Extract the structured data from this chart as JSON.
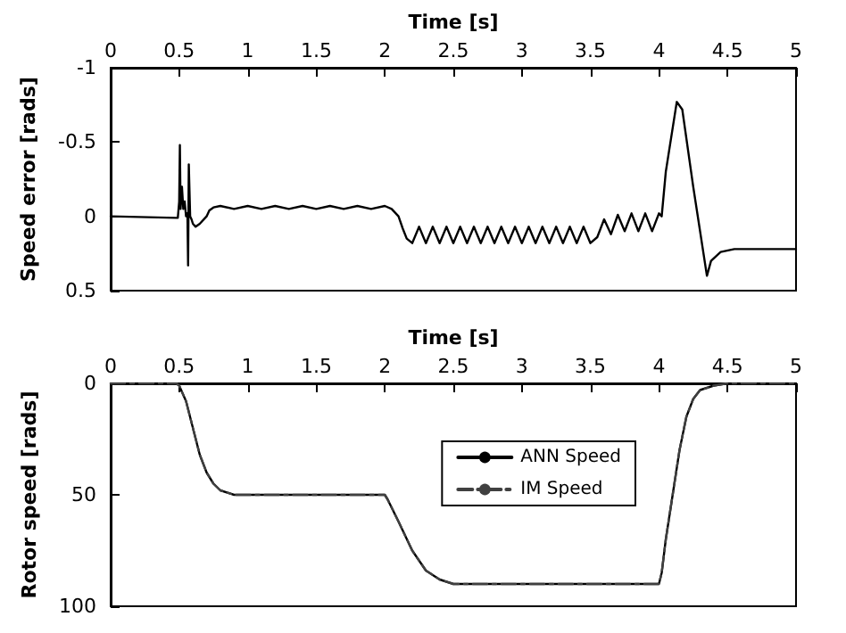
{
  "chart_data": [
    {
      "type": "line",
      "xlabel": "Time [s]",
      "ylabel": "Speed error [rads]",
      "xlim": [
        0,
        5
      ],
      "xticks": [
        0,
        0.5,
        1,
        1.5,
        2,
        2.5,
        3,
        3.5,
        4,
        4.5,
        5
      ],
      "ylim": [
        0.5,
        -1
      ],
      "yticks": [
        -1,
        -0.5,
        0,
        0.5
      ],
      "grid": false,
      "legend": false,
      "line_style": "solid",
      "marker": "none",
      "series": [
        {
          "color": "#000000",
          "x": [
            0,
            0.48,
            0.49,
            0.5,
            0.505,
            0.51,
            0.52,
            0.53,
            0.54,
            0.55,
            0.56,
            0.565,
            0.57,
            0.58,
            0.59,
            0.6,
            0.62,
            0.65,
            0.7,
            0.72,
            0.75,
            0.8,
            0.9,
            1.0,
            1.1,
            1.2,
            1.3,
            1.4,
            1.5,
            1.6,
            1.7,
            1.8,
            1.9,
            2.0,
            2.05,
            2.1,
            2.13,
            2.16,
            2.2,
            2.25,
            2.3,
            2.35,
            2.4,
            2.45,
            2.5,
            2.55,
            2.6,
            2.65,
            2.7,
            2.75,
            2.8,
            2.85,
            2.9,
            2.95,
            3.0,
            3.05,
            3.1,
            3.15,
            3.2,
            3.25,
            3.3,
            3.35,
            3.4,
            3.45,
            3.5,
            3.55,
            3.6,
            3.65,
            3.7,
            3.75,
            3.8,
            3.85,
            3.9,
            3.95,
            4.0,
            4.02,
            4.05,
            4.13,
            4.17,
            4.25,
            4.3,
            4.35,
            4.38,
            4.45,
            4.55,
            5
          ],
          "values": [
            0,
            0.01,
            0.01,
            -0.1,
            -0.48,
            -0.05,
            -0.2,
            -0.05,
            -0.1,
            0,
            -0.02,
            0.33,
            -0.35,
            0,
            0.02,
            0.05,
            0.07,
            0.05,
            0,
            -0.04,
            -0.06,
            -0.07,
            -0.05,
            -0.07,
            -0.05,
            -0.07,
            -0.05,
            -0.07,
            -0.05,
            -0.07,
            -0.05,
            -0.07,
            -0.05,
            -0.07,
            -0.05,
            0,
            0.08,
            0.15,
            0.18,
            0.07,
            0.18,
            0.07,
            0.18,
            0.07,
            0.18,
            0.07,
            0.18,
            0.07,
            0.18,
            0.07,
            0.18,
            0.07,
            0.18,
            0.07,
            0.18,
            0.07,
            0.18,
            0.07,
            0.18,
            0.07,
            0.18,
            0.07,
            0.18,
            0.07,
            0.18,
            0.14,
            0.02,
            0.12,
            -0.01,
            0.1,
            -0.02,
            0.1,
            -0.02,
            0.1,
            -0.02,
            0,
            -0.3,
            -0.77,
            -0.72,
            -0.2,
            0.1,
            0.4,
            0.3,
            0.24,
            0.22,
            0.22
          ]
        }
      ]
    },
    {
      "type": "line",
      "xlabel": "Time [s]",
      "ylabel": "Rotor speed [rads]",
      "xlim": [
        0,
        5
      ],
      "xticks": [
        0,
        0.5,
        1,
        1.5,
        2,
        2.5,
        3,
        3.5,
        4,
        4.5,
        5
      ],
      "ylim": [
        100,
        0
      ],
      "yticks": [
        0,
        50,
        100
      ],
      "grid": false,
      "legend": "right",
      "marker": "none",
      "series": [
        {
          "name": "ANN Speed",
          "color": "#000000",
          "line_style": "solid",
          "x": [
            0,
            0.48,
            0.5,
            0.55,
            0.6,
            0.65,
            0.7,
            0.75,
            0.8,
            0.9,
            1.0,
            1.5,
            2.0,
            2.02,
            2.1,
            2.2,
            2.3,
            2.4,
            2.5,
            2.6,
            3.0,
            3.5,
            4.0,
            4.02,
            4.05,
            4.1,
            4.15,
            4.2,
            4.25,
            4.3,
            4.4,
            4.5,
            5
          ],
          "values": [
            0,
            0,
            1,
            8,
            20,
            32,
            40,
            45,
            48,
            50,
            50,
            50,
            50,
            52,
            62,
            75,
            84,
            88,
            90,
            90,
            90,
            90,
            90,
            85,
            70,
            50,
            30,
            15,
            7,
            3,
            1,
            0,
            0
          ]
        },
        {
          "name": "IM Speed",
          "color": "#404040",
          "line_style": "dashed",
          "x": [
            0,
            0.48,
            0.5,
            0.55,
            0.6,
            0.65,
            0.7,
            0.75,
            0.8,
            0.9,
            1.0,
            1.5,
            2.0,
            2.02,
            2.1,
            2.2,
            2.3,
            2.4,
            2.5,
            2.6,
            3.0,
            3.5,
            4.0,
            4.02,
            4.05,
            4.1,
            4.15,
            4.2,
            4.25,
            4.3,
            4.4,
            4.5,
            5
          ],
          "values": [
            0,
            0,
            1,
            8,
            20,
            32,
            40,
            45,
            48,
            50,
            50,
            50,
            50,
            52,
            62,
            75,
            84,
            88,
            90,
            90,
            90,
            90,
            90,
            85,
            70,
            50,
            30,
            15,
            7,
            3,
            1,
            0,
            0
          ]
        }
      ]
    }
  ]
}
